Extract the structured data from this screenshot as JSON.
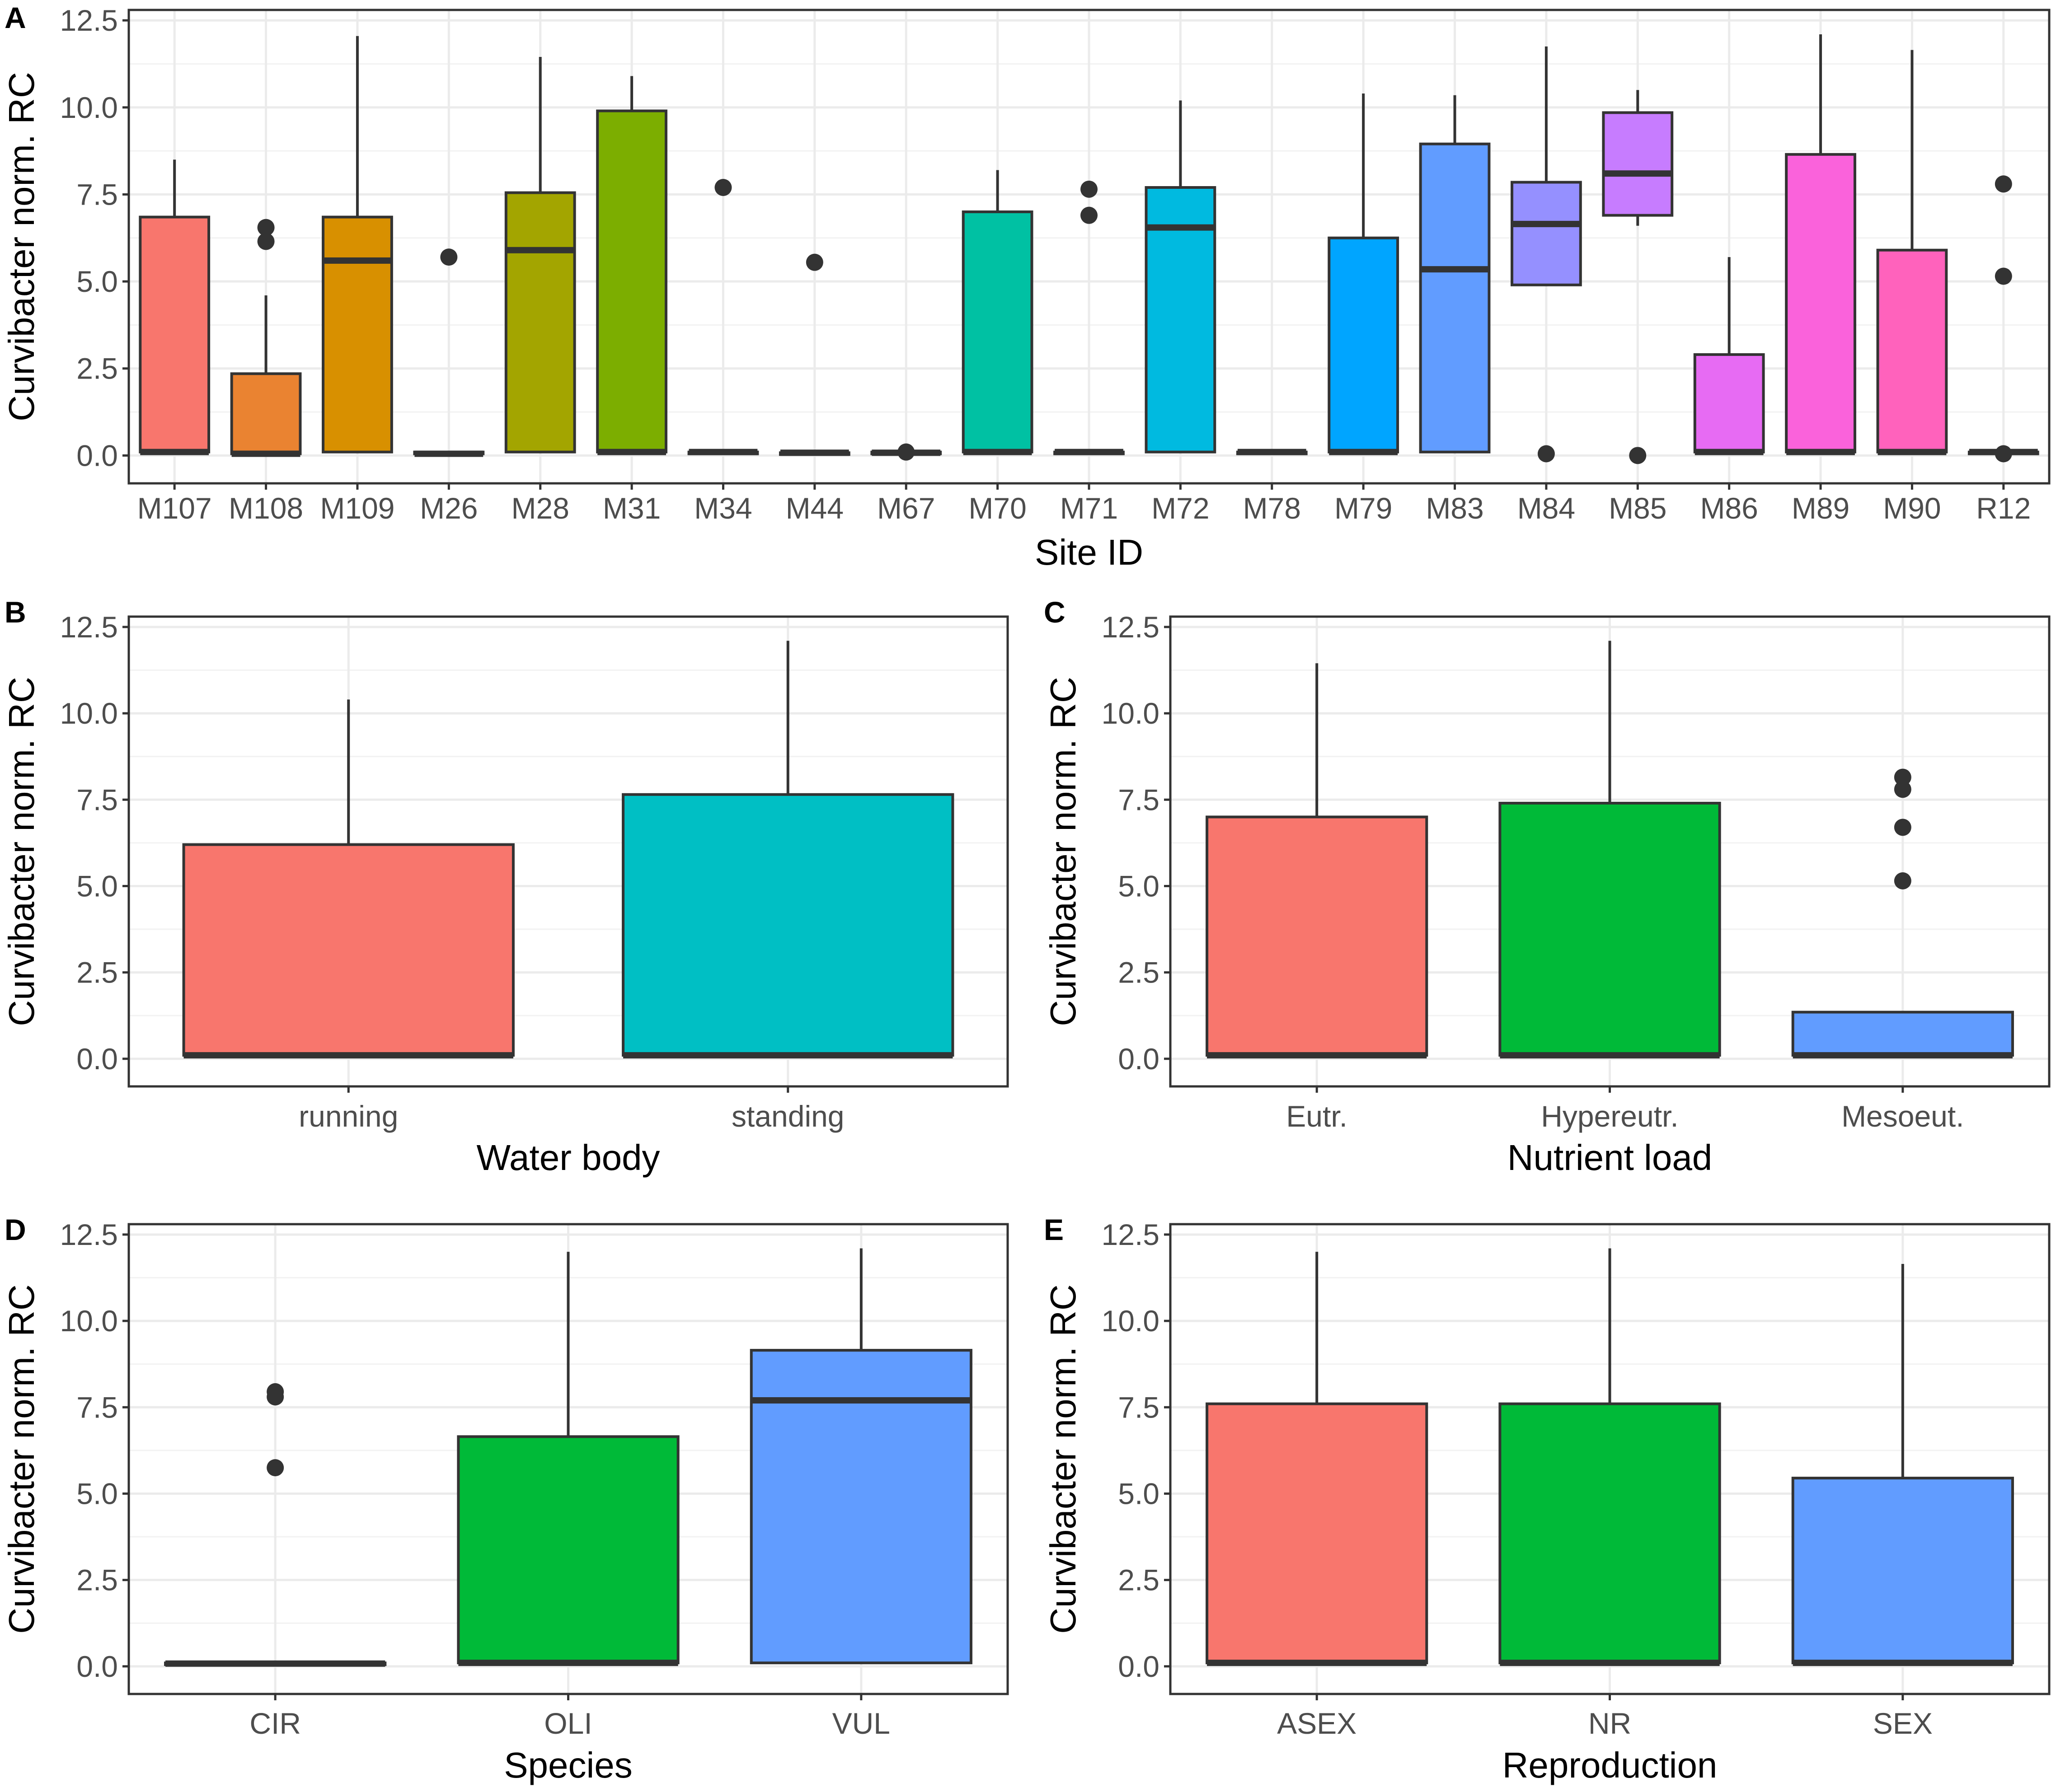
{
  "chart_data": [
    {
      "id": "A",
      "type": "box",
      "tag": "A",
      "xlabel": "Site ID",
      "ylabel": "Curvibacter norm. RC",
      "ylim": [
        -0.8,
        12.8
      ],
      "yticks": [
        "0.0",
        "2.5",
        "5.0",
        "7.5",
        "10.0",
        "12.5"
      ],
      "categories": [
        "M107",
        "M108",
        "M109",
        "M26",
        "M28",
        "M31",
        "M34",
        "M44",
        "M67",
        "M70",
        "M71",
        "M72",
        "M78",
        "M79",
        "M83",
        "M84",
        "M85",
        "M86",
        "M89",
        "M90",
        "R12"
      ],
      "boxes": [
        {
          "q1": 0.1,
          "median": 0.1,
          "q3": 6.85,
          "low": 0.1,
          "high": 8.5,
          "outliers": [],
          "color": "#F8766D"
        },
        {
          "q1": 0.05,
          "median": 0.05,
          "q3": 2.35,
          "low": 0.05,
          "high": 4.6,
          "outliers": [
            6.55,
            6.15
          ],
          "color": "#EA8331"
        },
        {
          "q1": 0.1,
          "median": 5.6,
          "q3": 6.85,
          "low": 0.1,
          "high": 12.05,
          "outliers": [],
          "color": "#D89000"
        },
        {
          "q1": 0.05,
          "median": 0.05,
          "q3": 0.1,
          "low": 0.05,
          "high": 0.1,
          "outliers": [
            5.7
          ],
          "color": "#C09B00"
        },
        {
          "q1": 0.1,
          "median": 5.9,
          "q3": 7.55,
          "low": 0.1,
          "high": 11.45,
          "outliers": [],
          "color": "#A3A500"
        },
        {
          "q1": 0.1,
          "median": 0.1,
          "q3": 9.9,
          "low": 0.1,
          "high": 10.9,
          "outliers": [],
          "color": "#7CAE00"
        },
        {
          "q1": 0.1,
          "median": 0.1,
          "q3": 0.1,
          "low": 0.1,
          "high": 0.1,
          "outliers": [
            7.7
          ],
          "color": "#39B600"
        },
        {
          "q1": 0.08,
          "median": 0.08,
          "q3": 0.08,
          "low": 0.08,
          "high": 0.08,
          "outliers": [
            5.55
          ],
          "color": "#00BB4E"
        },
        {
          "q1": 0.08,
          "median": 0.08,
          "q3": 0.1,
          "low": 0.08,
          "high": 0.1,
          "outliers": [
            0.1
          ],
          "color": "#00BF7D"
        },
        {
          "q1": 0.1,
          "median": 0.1,
          "q3": 7.0,
          "low": 0.1,
          "high": 8.2,
          "outliers": [],
          "color": "#00C1A3"
        },
        {
          "q1": 0.1,
          "median": 0.1,
          "q3": 0.1,
          "low": 0.1,
          "high": 0.1,
          "outliers": [
            7.65,
            6.9
          ],
          "color": "#00BFC4"
        },
        {
          "q1": 0.1,
          "median": 6.55,
          "q3": 7.7,
          "low": 0.1,
          "high": 10.2,
          "outliers": [],
          "color": "#00BAE0"
        },
        {
          "q1": 0.1,
          "median": 0.1,
          "q3": 0.1,
          "low": 0.1,
          "high": 0.1,
          "outliers": [],
          "color": "#00B0F6"
        },
        {
          "q1": 0.1,
          "median": 0.1,
          "q3": 6.25,
          "low": 0.1,
          "high": 10.4,
          "outliers": [],
          "color": "#00A5FF"
        },
        {
          "q1": 0.1,
          "median": 5.35,
          "q3": 8.95,
          "low": 0.1,
          "high": 10.35,
          "outliers": [],
          "color": "#619CFF"
        },
        {
          "q1": 4.9,
          "median": 6.65,
          "q3": 7.85,
          "low": 4.9,
          "high": 11.75,
          "outliers": [
            0.05
          ],
          "color": "#9590FF"
        },
        {
          "q1": 6.9,
          "median": 8.1,
          "q3": 9.85,
          "low": 6.6,
          "high": 10.5,
          "outliers": [
            0.0
          ],
          "color": "#C77CFF"
        },
        {
          "q1": 0.1,
          "median": 0.1,
          "q3": 2.9,
          "low": 0.1,
          "high": 5.7,
          "outliers": [],
          "color": "#E76BF3"
        },
        {
          "q1": 0.1,
          "median": 0.1,
          "q3": 8.65,
          "low": 0.1,
          "high": 12.1,
          "outliers": [],
          "color": "#FA62DB"
        },
        {
          "q1": 0.1,
          "median": 0.1,
          "q3": 5.9,
          "low": 0.1,
          "high": 11.65,
          "outliers": [],
          "color": "#FF62BC"
        },
        {
          "q1": 0.1,
          "median": 0.1,
          "q3": 0.1,
          "low": 0.1,
          "high": 0.1,
          "outliers": [
            7.8,
            5.15,
            0.05
          ],
          "color": "#FF6C91"
        }
      ]
    },
    {
      "id": "B",
      "type": "box",
      "tag": "B",
      "xlabel": "Water body",
      "ylabel": "Curvibacter norm. RC",
      "ylim": [
        -0.8,
        12.8
      ],
      "yticks": [
        "0.0",
        "2.5",
        "5.0",
        "7.5",
        "10.0",
        "12.5"
      ],
      "categories": [
        "running",
        "standing"
      ],
      "boxes": [
        {
          "q1": 0.1,
          "median": 0.1,
          "q3": 6.2,
          "low": 0.1,
          "high": 10.4,
          "outliers": [],
          "color": "#F8766D"
        },
        {
          "q1": 0.1,
          "median": 0.1,
          "q3": 7.65,
          "low": 0.1,
          "high": 12.1,
          "outliers": [],
          "color": "#00BFC4"
        }
      ]
    },
    {
      "id": "C",
      "type": "box",
      "tag": "C",
      "xlabel": "Nutrient load",
      "ylabel": "Curvibacter norm. RC",
      "ylim": [
        -0.8,
        12.8
      ],
      "yticks": [
        "0.0",
        "2.5",
        "5.0",
        "7.5",
        "10.0",
        "12.5"
      ],
      "categories": [
        "Eutr.",
        "Hypereutr.",
        "Mesoeut."
      ],
      "boxes": [
        {
          "q1": 0.1,
          "median": 0.1,
          "q3": 7.0,
          "low": 0.1,
          "high": 11.45,
          "outliers": [],
          "color": "#F8766D"
        },
        {
          "q1": 0.1,
          "median": 0.1,
          "q3": 7.4,
          "low": 0.1,
          "high": 12.1,
          "outliers": [],
          "color": "#00BA38"
        },
        {
          "q1": 0.1,
          "median": 0.1,
          "q3": 1.35,
          "low": 0.1,
          "high": 1.35,
          "outliers": [
            8.15,
            7.8,
            6.7,
            5.15
          ],
          "color": "#619CFF"
        }
      ]
    },
    {
      "id": "D",
      "type": "box",
      "tag": "D",
      "xlabel": "Species",
      "ylabel": "Curvibacter norm. RC",
      "ylim": [
        -0.8,
        12.8
      ],
      "yticks": [
        "0.0",
        "2.5",
        "5.0",
        "7.5",
        "10.0",
        "12.5"
      ],
      "categories": [
        "CIR",
        "OLI",
        "VUL"
      ],
      "boxes": [
        {
          "q1": 0.05,
          "median": 0.08,
          "q3": 0.1,
          "low": 0.05,
          "high": 0.1,
          "outliers": [
            7.95,
            7.8,
            5.75
          ],
          "color": "#F8766D"
        },
        {
          "q1": 0.1,
          "median": 0.1,
          "q3": 6.65,
          "low": 0.1,
          "high": 12.0,
          "outliers": [],
          "color": "#00BA38"
        },
        {
          "q1": 0.1,
          "median": 7.7,
          "q3": 9.15,
          "low": 0.1,
          "high": 12.1,
          "outliers": [],
          "color": "#619CFF"
        }
      ]
    },
    {
      "id": "E",
      "type": "box",
      "tag": "E",
      "xlabel": "Reproduction",
      "ylabel": "Curvibacter norm. RC",
      "ylim": [
        -0.8,
        12.8
      ],
      "yticks": [
        "0.0",
        "2.5",
        "5.0",
        "7.5",
        "10.0",
        "12.5"
      ],
      "categories": [
        "ASEX",
        "NR",
        "SEX"
      ],
      "boxes": [
        {
          "q1": 0.1,
          "median": 0.1,
          "q3": 7.6,
          "low": 0.1,
          "high": 12.0,
          "outliers": [],
          "color": "#F8766D"
        },
        {
          "q1": 0.1,
          "median": 0.1,
          "q3": 7.6,
          "low": 0.1,
          "high": 12.1,
          "outliers": [],
          "color": "#00BA38"
        },
        {
          "q1": 0.1,
          "median": 0.1,
          "q3": 5.45,
          "low": 0.1,
          "high": 11.65,
          "outliers": [],
          "color": "#619CFF"
        }
      ]
    }
  ]
}
